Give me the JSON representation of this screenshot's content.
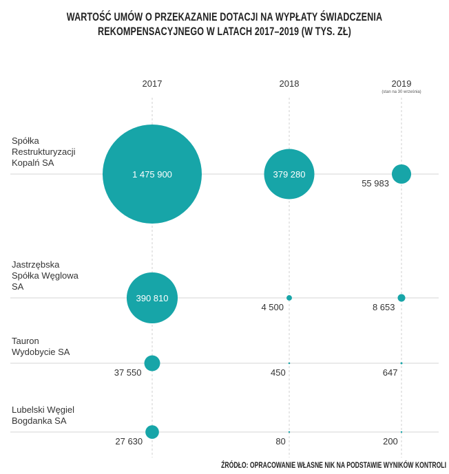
{
  "chart_data": {
    "type": "bubble",
    "title": "WARTOŚĆ UMÓW O PRZEKAZANIE DOTACJI NA WYPŁATY ŚWIADCZENIA REKOMPENSACYJNEGO W LATACH 2017–2019 (W TYS. ZŁ)",
    "categories": [
      "2017",
      "2018",
      "2019"
    ],
    "annotations": [
      {
        "x": "2019",
        "text": "(stan na 30 września)"
      }
    ],
    "color": "#17a5a8",
    "series": [
      {
        "name": "Spółka Restrukturyzacji Kopalń SA",
        "values": [
          1475900,
          379280,
          55983
        ],
        "value_labels": [
          "1 475 900",
          "379 280",
          "55 983"
        ]
      },
      {
        "name": "Jastrzębska Spółka Węglowa SA",
        "values": [
          390810,
          4500,
          8653
        ],
        "value_labels": [
          "390 810",
          "4 500",
          "8 653"
        ]
      },
      {
        "name": "Tauron Wydobycie SA",
        "values": [
          37550,
          450,
          647
        ],
        "value_labels": [
          "37 550",
          "450",
          "647"
        ]
      },
      {
        "name": "Lubelski Węgiel Bogdanka SA",
        "values": [
          27630,
          80,
          200
        ],
        "value_labels": [
          "27 630",
          "80",
          "200"
        ]
      }
    ],
    "source": "ŹRÓDŁO: OPRACOWANIE WŁASNE NIK NA PODSTAWIE WYNIKÓW KONTROLI"
  }
}
